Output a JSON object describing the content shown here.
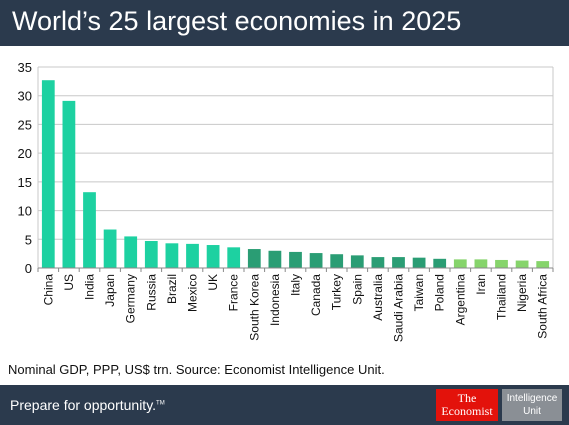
{
  "header": {
    "title": "World’s 25 largest economies in 2025"
  },
  "chart_data": {
    "type": "bar",
    "title": "World’s 25 largest economies in 2025",
    "categories": [
      "China",
      "US",
      "India",
      "Japan",
      "Germany",
      "Russia",
      "Brazil",
      "Mexico",
      "UK",
      "France",
      "South Korea",
      "Indonesia",
      "Italy",
      "Canada",
      "Turkey",
      "Spain",
      "Australia",
      "Saudi Arabia",
      "Taiwan",
      "Poland",
      "Argentina",
      "Iran",
      "Thailand",
      "Nigeria",
      "South Africa"
    ],
    "values": [
      32.7,
      29.1,
      13.2,
      6.7,
      5.5,
      4.7,
      4.3,
      4.2,
      4.0,
      3.6,
      3.3,
      3.0,
      2.8,
      2.6,
      2.4,
      2.2,
      1.9,
      1.9,
      1.8,
      1.6,
      1.5,
      1.5,
      1.4,
      1.3,
      1.2
    ],
    "ylim": [
      0,
      35
    ],
    "yticks": [
      0,
      5,
      10,
      15,
      20,
      25,
      30,
      35
    ],
    "grid": true,
    "colors": [
      "#1dd1a1",
      "#1dd1a1",
      "#1dd1a1",
      "#1dd1a1",
      "#1dd1a1",
      "#1dd1a1",
      "#1dd1a1",
      "#1dd1a1",
      "#1dd1a1",
      "#1dd1a1",
      "#2a9d74",
      "#2a9d74",
      "#2a9d74",
      "#2a9d74",
      "#2a9d74",
      "#2a9d74",
      "#2a9d74",
      "#2a9d74",
      "#2a9d74",
      "#2a9d74",
      "#86d46b",
      "#86d46b",
      "#86d46b",
      "#86d46b",
      "#86d46b"
    ],
    "xlabel": "",
    "ylabel": ""
  },
  "source_note": "Nominal GDP, PPP, US$ trn. Source: Economist Intelligence Unit.",
  "footer": {
    "slogan": "Prepare for opportunity.",
    "trademark": "TM",
    "economist_line1": "The",
    "economist_line2": "Economist",
    "iu_line1": "Intelligence",
    "iu_line2": "Unit"
  },
  "theme": {
    "bar_color": "#2b3a4d",
    "grid_color": "#c8c8c8"
  }
}
